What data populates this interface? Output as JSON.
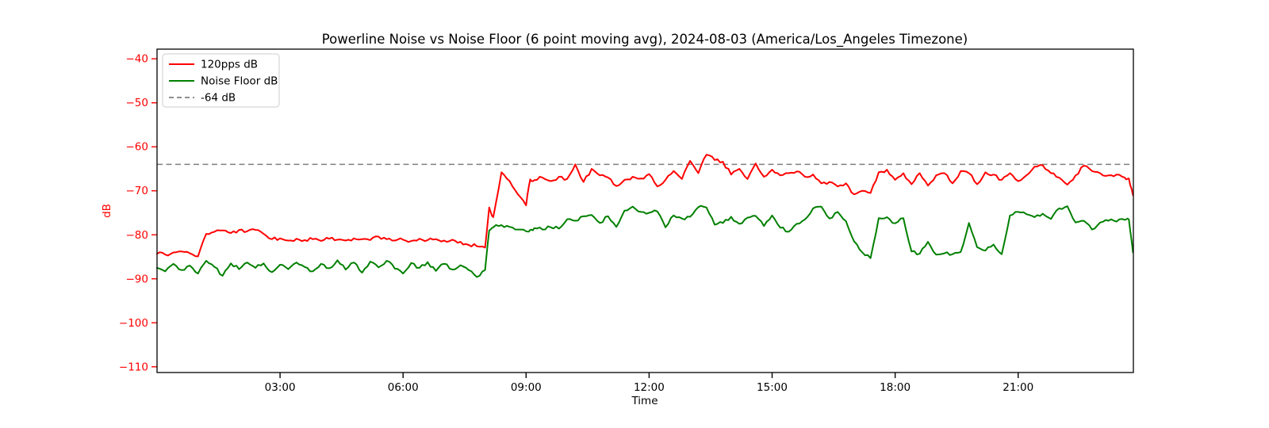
{
  "chart_data": {
    "type": "line",
    "title": "Powerline Noise vs Noise Floor (6 point moving avg), 2024-08-03 (America/Los_Angeles Timezone)",
    "xlabel": "Time",
    "ylabel": "dB",
    "grid": false,
    "legend_position": "upper left",
    "xlim_hours": [
      0,
      23.81
    ],
    "ylim": [
      -111.3,
      -37.8
    ],
    "y_axis_color": "#ff0000",
    "x_axis_color": "#000000",
    "background_color": "#ffffff",
    "texture_noise_db": 0.4,
    "x_ticks": [
      {
        "hour": 3,
        "label": "03:00"
      },
      {
        "hour": 6,
        "label": "06:00"
      },
      {
        "hour": 9,
        "label": "09:00"
      },
      {
        "hour": 12,
        "label": "12:00"
      },
      {
        "hour": 15,
        "label": "15:00"
      },
      {
        "hour": 18,
        "label": "18:00"
      },
      {
        "hour": 21,
        "label": "21:00"
      }
    ],
    "y_ticks": [
      {
        "value": -40,
        "label": "−40"
      },
      {
        "value": -50,
        "label": "−50"
      },
      {
        "value": -60,
        "label": "−60"
      },
      {
        "value": -70,
        "label": "−70"
      },
      {
        "value": -80,
        "label": "−80"
      },
      {
        "value": -90,
        "label": "−90"
      },
      {
        "value": -100,
        "label": "−100"
      },
      {
        "value": -110,
        "label": "−110"
      }
    ],
    "threshold": {
      "label": "-64 dB",
      "value": -64,
      "color": "#7f7f7f",
      "style": "dashed"
    },
    "x_hours": [
      0.0,
      0.2,
      0.4,
      0.6,
      0.8,
      1.0,
      1.2,
      1.4,
      1.6,
      1.8,
      2.0,
      2.2,
      2.4,
      2.6,
      2.8,
      3.0,
      3.2,
      3.4,
      3.6,
      3.8,
      4.0,
      4.2,
      4.4,
      4.6,
      4.8,
      5.0,
      5.2,
      5.4,
      5.6,
      5.8,
      6.0,
      6.2,
      6.4,
      6.6,
      6.8,
      7.0,
      7.2,
      7.4,
      7.6,
      7.8,
      8.0,
      8.1,
      8.2,
      8.4,
      8.6,
      8.8,
      9.0,
      9.1,
      9.2,
      9.4,
      9.6,
      9.8,
      10.0,
      10.2,
      10.4,
      10.6,
      10.8,
      11.0,
      11.2,
      11.4,
      11.6,
      11.8,
      12.0,
      12.2,
      12.4,
      12.6,
      12.8,
      13.0,
      13.2,
      13.4,
      13.6,
      13.8,
      14.0,
      14.2,
      14.4,
      14.6,
      14.8,
      15.0,
      15.2,
      15.4,
      15.6,
      15.8,
      16.0,
      16.2,
      16.4,
      16.6,
      16.8,
      17.0,
      17.2,
      17.4,
      17.6,
      17.8,
      18.0,
      18.2,
      18.4,
      18.6,
      18.8,
      19.0,
      19.2,
      19.4,
      19.6,
      19.8,
      20.0,
      20.2,
      20.4,
      20.6,
      20.8,
      21.0,
      21.2,
      21.4,
      21.6,
      21.8,
      22.0,
      22.2,
      22.4,
      22.6,
      22.8,
      23.0,
      23.2,
      23.4,
      23.6,
      23.7,
      23.8
    ],
    "series": [
      {
        "name": "120pps dB",
        "color": "#ff0000",
        "line_width": 2,
        "values": [
          -84.3,
          -84.5,
          -84.0,
          -83.8,
          -84.2,
          -84.9,
          -79.8,
          -79.3,
          -79.0,
          -79.6,
          -78.9,
          -79.2,
          -78.9,
          -79.8,
          -81.0,
          -80.8,
          -81.3,
          -80.9,
          -81.2,
          -81.0,
          -81.4,
          -80.9,
          -81.1,
          -81.3,
          -80.8,
          -81.0,
          -81.2,
          -80.4,
          -81.0,
          -81.3,
          -81.1,
          -81.4,
          -80.9,
          -81.2,
          -81.0,
          -81.3,
          -81.1,
          -81.6,
          -82.3,
          -82.6,
          -82.9,
          -73.8,
          -76.0,
          -65.8,
          -67.8,
          -70.8,
          -73.3,
          -67.4,
          -67.6,
          -67.0,
          -67.8,
          -66.8,
          -67.3,
          -64.0,
          -68.0,
          -65.0,
          -66.5,
          -67.0,
          -68.9,
          -67.5,
          -66.8,
          -67.2,
          -66.2,
          -69.0,
          -67.5,
          -65.5,
          -67.3,
          -63.2,
          -66.0,
          -61.8,
          -63.0,
          -63.4,
          -66.3,
          -65.0,
          -67.3,
          -63.8,
          -66.8,
          -65.2,
          -66.5,
          -66.0,
          -65.6,
          -66.8,
          -66.3,
          -68.3,
          -68.0,
          -69.0,
          -68.3,
          -70.8,
          -70.0,
          -70.5,
          -65.8,
          -65.2,
          -67.5,
          -66.0,
          -68.5,
          -66.0,
          -68.8,
          -66.5,
          -66.0,
          -68.3,
          -65.5,
          -66.0,
          -68.5,
          -65.8,
          -66.3,
          -67.5,
          -66.0,
          -67.8,
          -66.5,
          -64.5,
          -64.2,
          -66.0,
          -67.0,
          -68.6,
          -66.5,
          -64.3,
          -65.5,
          -66.0,
          -66.5,
          -66.3,
          -67.0,
          -67.2,
          -71.0
        ]
      },
      {
        "name": "Noise Floor dB",
        "color": "#008000",
        "line_width": 2,
        "values": [
          -87.5,
          -88.3,
          -86.6,
          -88.0,
          -87.0,
          -88.8,
          -85.9,
          -87.3,
          -89.3,
          -86.5,
          -87.8,
          -86.3,
          -87.5,
          -86.5,
          -88.5,
          -86.8,
          -87.8,
          -86.3,
          -87.3,
          -88.3,
          -86.6,
          -87.6,
          -85.8,
          -87.9,
          -86.3,
          -88.6,
          -86.1,
          -87.4,
          -85.9,
          -87.7,
          -88.8,
          -86.4,
          -87.5,
          -86.2,
          -88.2,
          -86.6,
          -87.9,
          -86.9,
          -88.0,
          -89.6,
          -88.0,
          -79.0,
          -78.3,
          -77.8,
          -78.2,
          -78.8,
          -79.2,
          -78.9,
          -78.5,
          -78.8,
          -78.3,
          -78.6,
          -76.5,
          -76.8,
          -75.8,
          -75.5,
          -77.3,
          -75.8,
          -78.2,
          -74.5,
          -73.6,
          -74.8,
          -75.0,
          -74.7,
          -78.3,
          -75.6,
          -76.3,
          -75.9,
          -73.7,
          -73.8,
          -77.7,
          -77.3,
          -75.9,
          -77.5,
          -76.1,
          -75.7,
          -78.0,
          -75.6,
          -78.4,
          -79.3,
          -77.5,
          -76.5,
          -74.0,
          -73.6,
          -76.3,
          -74.8,
          -76.9,
          -81.5,
          -84.0,
          -85.3,
          -76.2,
          -76.0,
          -77.4,
          -76.2,
          -83.8,
          -84.3,
          -81.6,
          -84.5,
          -84.2,
          -84.4,
          -83.9,
          -77.3,
          -82.8,
          -83.6,
          -82.2,
          -84.4,
          -75.6,
          -74.8,
          -75.3,
          -76.0,
          -75.2,
          -76.4,
          -74.0,
          -73.5,
          -77.2,
          -76.8,
          -78.8,
          -77.2,
          -76.8,
          -77.0,
          -76.6,
          -76.5,
          -84.0
        ]
      }
    ]
  }
}
